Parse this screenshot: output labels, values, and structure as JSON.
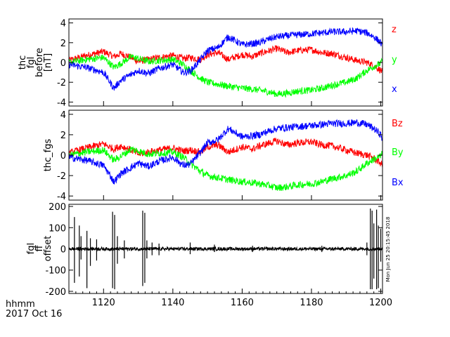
{
  "chart_data": [
    {
      "type": "line",
      "panel": "top",
      "ylabel_lines": [
        "thc",
        "fgl",
        "before",
        "[nT]"
      ],
      "ylim": [
        -4.4,
        4.4
      ],
      "y_ticks": [
        4,
        2,
        0,
        -2,
        -4
      ],
      "x_range": [
        1110,
        1200.5
      ],
      "series": [
        {
          "name": "z",
          "color": "#ff0000",
          "x": [
            1110,
            1115,
            1120,
            1123,
            1125,
            1128,
            1130,
            1133,
            1136,
            1140,
            1143,
            1145,
            1148,
            1150,
            1153,
            1156,
            1160,
            1163,
            1165,
            1168,
            1170,
            1173,
            1176,
            1180,
            1183,
            1186,
            1190,
            1193,
            1196,
            1198,
            1200,
            1200.5
          ],
          "y": [
            0.2,
            0.7,
            1.1,
            0.6,
            0.9,
            0.5,
            0.1,
            0.3,
            0.5,
            0.7,
            0.4,
            0.5,
            0.3,
            0.8,
            1.0,
            0.3,
            0.8,
            0.6,
            0.9,
            1.2,
            1.4,
            1.0,
            1.2,
            1.3,
            1.0,
            0.9,
            0.5,
            0.2,
            0.0,
            -0.3,
            -0.8,
            -1.0
          ]
        },
        {
          "name": "y",
          "color": "#00ff00",
          "x": [
            1110,
            1115,
            1120,
            1123,
            1125,
            1128,
            1130,
            1133,
            1136,
            1140,
            1143,
            1145,
            1148,
            1150,
            1153,
            1156,
            1160,
            1163,
            1165,
            1168,
            1170,
            1173,
            1176,
            1180,
            1183,
            1186,
            1190,
            1193,
            1196,
            1198,
            1200,
            1200.5
          ],
          "y": [
            0.0,
            0.3,
            0.5,
            -0.5,
            -0.1,
            0.6,
            0.4,
            0.1,
            0.2,
            0.3,
            -0.2,
            -0.8,
            -1.6,
            -2.0,
            -2.2,
            -2.4,
            -2.6,
            -2.7,
            -2.8,
            -3.0,
            -3.2,
            -3.1,
            -2.9,
            -2.8,
            -2.6,
            -2.3,
            -2.0,
            -1.6,
            -0.8,
            -0.4,
            -0.1,
            0.2
          ]
        },
        {
          "name": "x",
          "color": "#0000ff",
          "x": [
            1110,
            1115,
            1120,
            1123,
            1125,
            1128,
            1130,
            1133,
            1136,
            1140,
            1143,
            1145,
            1148,
            1150,
            1153,
            1156,
            1160,
            1163,
            1165,
            1168,
            1170,
            1173,
            1176,
            1180,
            1183,
            1186,
            1190,
            1193,
            1196,
            1198,
            1200,
            1200.5
          ],
          "y": [
            -0.2,
            -0.5,
            -1.0,
            -2.6,
            -1.8,
            -1.2,
            -0.8,
            -1.1,
            -0.6,
            -0.2,
            -1.0,
            -0.9,
            0.3,
            1.2,
            1.5,
            2.6,
            1.8,
            1.9,
            2.0,
            2.4,
            2.6,
            2.7,
            2.8,
            2.9,
            3.0,
            3.1,
            3.1,
            3.2,
            3.0,
            2.6,
            2.0,
            1.5
          ]
        }
      ]
    },
    {
      "type": "line",
      "panel": "middle",
      "ylabel": "thc_fgs",
      "ylim": [
        -4.4,
        4.4
      ],
      "y_ticks": [
        4,
        2,
        0,
        -2,
        -4
      ],
      "x_range": [
        1110,
        1200.5
      ],
      "series": [
        {
          "name": "Bz",
          "color": "#ff0000",
          "x": [
            1110,
            1115,
            1120,
            1123,
            1125,
            1128,
            1130,
            1133,
            1136,
            1140,
            1143,
            1145,
            1148,
            1150,
            1153,
            1156,
            1160,
            1163,
            1165,
            1168,
            1170,
            1173,
            1176,
            1180,
            1183,
            1186,
            1190,
            1193,
            1196,
            1198,
            1200,
            1200.5
          ],
          "y": [
            0.2,
            0.7,
            1.1,
            0.6,
            0.9,
            0.5,
            0.1,
            0.3,
            0.5,
            0.7,
            0.4,
            0.5,
            0.3,
            0.8,
            1.0,
            0.3,
            0.8,
            0.6,
            0.9,
            1.2,
            1.4,
            1.0,
            1.2,
            1.3,
            1.0,
            0.9,
            0.5,
            0.2,
            0.0,
            -0.3,
            -0.8,
            -1.0
          ]
        },
        {
          "name": "By",
          "color": "#00ff00",
          "x": [
            1110,
            1115,
            1120,
            1123,
            1125,
            1128,
            1130,
            1133,
            1136,
            1140,
            1143,
            1145,
            1148,
            1150,
            1153,
            1156,
            1160,
            1163,
            1165,
            1168,
            1170,
            1173,
            1176,
            1180,
            1183,
            1186,
            1190,
            1193,
            1196,
            1198,
            1200,
            1200.5
          ],
          "y": [
            0.0,
            0.3,
            0.5,
            -0.5,
            -0.1,
            0.6,
            0.4,
            0.1,
            0.2,
            0.3,
            -0.2,
            -0.8,
            -1.6,
            -2.0,
            -2.2,
            -2.4,
            -2.6,
            -2.7,
            -2.8,
            -3.0,
            -3.2,
            -3.1,
            -2.9,
            -2.8,
            -2.6,
            -2.3,
            -2.0,
            -1.6,
            -0.8,
            -0.4,
            -0.1,
            0.2
          ]
        },
        {
          "name": "Bx",
          "color": "#0000ff",
          "x": [
            1110,
            1115,
            1120,
            1123,
            1125,
            1128,
            1130,
            1133,
            1136,
            1140,
            1143,
            1145,
            1148,
            1150,
            1153,
            1156,
            1160,
            1163,
            1165,
            1168,
            1170,
            1173,
            1176,
            1180,
            1183,
            1186,
            1190,
            1193,
            1196,
            1198,
            1200,
            1200.5
          ],
          "y": [
            -0.2,
            -0.5,
            -1.0,
            -2.6,
            -1.8,
            -1.2,
            -0.8,
            -1.1,
            -0.6,
            -0.2,
            -1.0,
            -0.9,
            0.3,
            1.2,
            1.5,
            2.6,
            1.8,
            1.9,
            2.0,
            2.4,
            2.6,
            2.7,
            2.8,
            2.9,
            3.0,
            3.1,
            3.1,
            3.2,
            3.0,
            2.6,
            2.0,
            1.5
          ]
        }
      ]
    },
    {
      "type": "line",
      "panel": "bottom",
      "ylabel_lines": [
        "fgl",
        "ff",
        "offset"
      ],
      "ylim": [
        -210,
        210
      ],
      "y_ticks": [
        200,
        100,
        0,
        -100,
        -200
      ],
      "x_range": [
        1110,
        1200.5
      ],
      "xlabel": "hhmm",
      "date_label": "2017 Oct 16",
      "x_ticks": [
        1120,
        1140,
        1160,
        1180,
        1200
      ],
      "x_ticklabels": [
        "1120",
        "1140",
        "1160",
        "1180",
        "1200"
      ],
      "side_stamp": "Mon Jun 25 20:15:45 2018",
      "series": [
        {
          "name": "offset",
          "color": "#000000",
          "spikes_x": [
            1111.6,
            1113.0,
            1113.5,
            1115.2,
            1116.2,
            1118.0,
            1122.6,
            1123.2,
            1124.0,
            1126.0,
            1131.3,
            1131.9,
            1132.5,
            1134.0,
            1136.0,
            1145.0,
            1152.0,
            1163.0,
            1183.0,
            1196.0,
            1197.0,
            1197.5,
            1198.0,
            1198.8,
            1199.3,
            1200.0
          ],
          "spikes_high": [
            150,
            110,
            60,
            85,
            50,
            45,
            175,
            160,
            60,
            40,
            180,
            170,
            40,
            30,
            25,
            30,
            20,
            15,
            15,
            30,
            190,
            180,
            120,
            185,
            110,
            95
          ],
          "spikes_low": [
            -160,
            -130,
            -50,
            -185,
            -80,
            -55,
            -185,
            -190,
            -70,
            -45,
            -175,
            -160,
            -45,
            -30,
            -30,
            -25,
            -15,
            -15,
            -15,
            -30,
            -190,
            -190,
            -140,
            -190,
            -185,
            -60
          ]
        }
      ]
    }
  ],
  "colors": {
    "red": "#ff0000",
    "green": "#00ff00",
    "blue": "#0000ff",
    "black": "#000000"
  }
}
